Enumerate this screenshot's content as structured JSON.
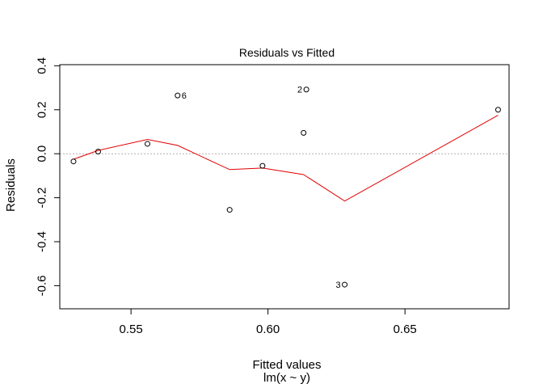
{
  "chart_data": {
    "type": "scatter",
    "title": "Residuals vs Fitted",
    "xlabel": "Fitted values",
    "subtitle": "lm(x ~ y)",
    "ylabel": "Residuals",
    "xlim": [
      0.524,
      0.688
    ],
    "ylim": [
      -0.705,
      0.405
    ],
    "x_ticks": [
      0.55,
      0.6,
      0.65
    ],
    "x_tick_labels": [
      "0.55",
      "0.60",
      "0.65"
    ],
    "y_ticks": [
      -0.6,
      -0.4,
      -0.2,
      0.0,
      0.2,
      0.4
    ],
    "y_tick_labels": [
      "-0.6",
      "-0.4",
      "-0.2",
      "0.0",
      "0.2",
      "0.4"
    ],
    "reference_line_y": 0.0,
    "grid": false,
    "points": [
      {
        "x": 0.529,
        "y": -0.035
      },
      {
        "x": 0.538,
        "y": 0.01
      },
      {
        "x": 0.556,
        "y": 0.045
      },
      {
        "x": 0.567,
        "y": 0.265,
        "label": "6",
        "label_side": "right"
      },
      {
        "x": 0.586,
        "y": -0.255
      },
      {
        "x": 0.598,
        "y": -0.055
      },
      {
        "x": 0.613,
        "y": 0.095
      },
      {
        "x": 0.614,
        "y": 0.292,
        "label": "2",
        "label_side": "left"
      },
      {
        "x": 0.628,
        "y": -0.595,
        "label": "3",
        "label_side": "left"
      },
      {
        "x": 0.684,
        "y": 0.2
      }
    ],
    "smoother": {
      "color": "#e00000",
      "x": [
        0.529,
        0.538,
        0.556,
        0.567,
        0.586,
        0.598,
        0.613,
        0.628,
        0.684
      ],
      "y": [
        -0.025,
        0.015,
        0.065,
        0.038,
        -0.072,
        -0.065,
        -0.095,
        -0.215,
        0.175
      ]
    }
  }
}
